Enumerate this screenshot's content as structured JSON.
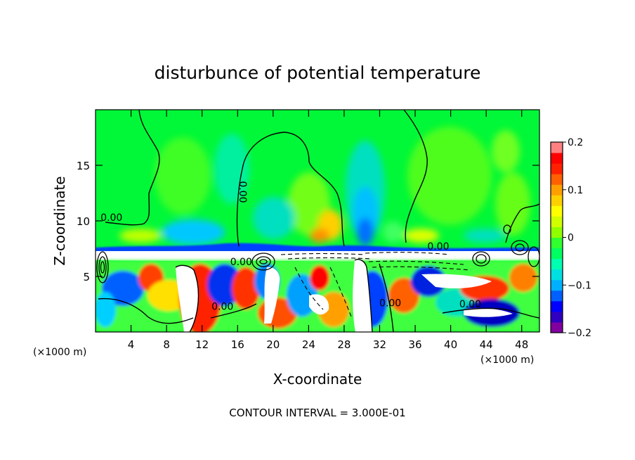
{
  "chart_data": {
    "type": "heatmap",
    "title": "disturbunce of potential temperature",
    "xlabel": "X-coordinate",
    "ylabel": "Z-coordinate",
    "x_unit_left": "(×1000 m)",
    "x_unit_right": "(×1000 m)",
    "xlim": [
      0,
      50
    ],
    "ylim": [
      0,
      20
    ],
    "x_ticks": [
      4,
      8,
      12,
      16,
      20,
      24,
      28,
      32,
      36,
      40,
      44,
      48
    ],
    "y_ticks": [
      5,
      10,
      15
    ],
    "colorbar": {
      "range": [
        -0.2,
        0.2
      ],
      "ticks": [
        -0.2,
        -0.1,
        0,
        0.1,
        0.2
      ],
      "tick_labels": [
        "−0.2",
        "−0.1",
        "0",
        "0.1",
        "0.2"
      ],
      "colors": [
        "#8000a0",
        "#3000c0",
        "#0000ff",
        "#0060ff",
        "#00b0ff",
        "#00e0e0",
        "#00ffb0",
        "#00ff60",
        "#30ff30",
        "#90ff00",
        "#d0ff00",
        "#ffff00",
        "#ffd000",
        "#ffa000",
        "#ff6000",
        "#ff2000",
        "#ff0000",
        "#ff8080"
      ]
    },
    "contour_labels": [
      {
        "text": "0.00",
        "x": 1.8,
        "y": 10
      },
      {
        "text": "0.00",
        "x": 16.2,
        "y": 12.6
      },
      {
        "text": "0.00",
        "x": 16.4,
        "y": 6
      },
      {
        "text": "0.00",
        "x": 14.3,
        "y": 2
      },
      {
        "text": "0.00",
        "x": 38.6,
        "y": 7.4
      },
      {
        "text": "0.00",
        "x": 42.2,
        "y": 2.2
      },
      {
        "text": "0.00",
        "x": 33.2,
        "y": 2.3
      }
    ],
    "contour_interval": "CONTOUR INTERVAL = 3.000E-01",
    "grid": false,
    "legend_placement": "right"
  }
}
